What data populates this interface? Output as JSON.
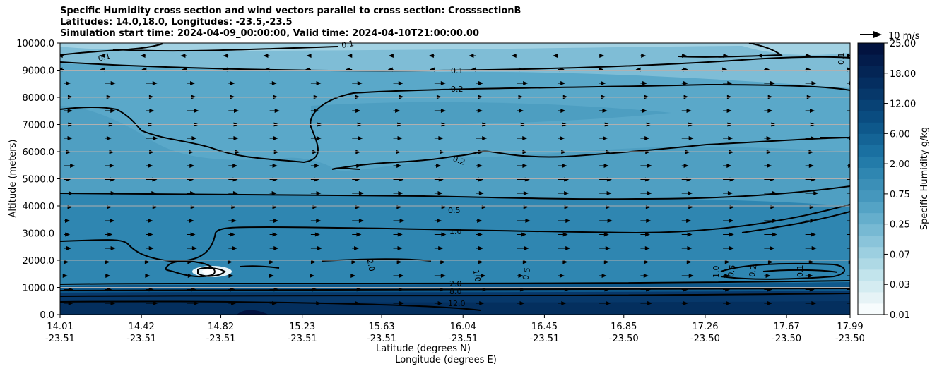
{
  "chart_data": {
    "type": "contourf",
    "title_lines": [
      "Specific Humidity cross section and wind vectors parallel to cross section: CrosssectionB",
      "Latitudes: 14.0,18.0, Longitudes: -23.5,-23.5",
      "Simulation start time: 2024-04-09_00:00:00, Valid time: 2024-04-10T21:00:00.00"
    ],
    "ylabel": "Altitude (meters)",
    "xlabel_lat": "Latitude (degrees N)",
    "xlabel_lon": "Longitude (degrees E)",
    "ylim": [
      0,
      10000
    ],
    "y_ticks": [
      {
        "value": 0,
        "label": "0.0"
      },
      {
        "value": 1000,
        "label": "1000.0"
      },
      {
        "value": 2000,
        "label": "2000.0"
      },
      {
        "value": 3000,
        "label": "3000.0"
      },
      {
        "value": 4000,
        "label": "4000.0"
      },
      {
        "value": 5000,
        "label": "5000.0"
      },
      {
        "value": 6000,
        "label": "6000.0"
      },
      {
        "value": 7000,
        "label": "7000.0"
      },
      {
        "value": 8000,
        "label": "8000.0"
      },
      {
        "value": 9000,
        "label": "9000.0"
      },
      {
        "value": 10000,
        "label": "10000.0"
      }
    ],
    "x_range": [
      14.01,
      17.99
    ],
    "x_ticks": [
      {
        "lat": "14.01",
        "lon": "-23.51",
        "value": 14.01
      },
      {
        "lat": "14.42",
        "lon": "-23.51",
        "value": 14.42
      },
      {
        "lat": "14.82",
        "lon": "-23.51",
        "value": 14.82
      },
      {
        "lat": "15.23",
        "lon": "-23.51",
        "value": 15.23
      },
      {
        "lat": "15.63",
        "lon": "-23.51",
        "value": 15.63
      },
      {
        "lat": "16.04",
        "lon": "-23.51",
        "value": 16.04
      },
      {
        "lat": "16.45",
        "lon": "-23.51",
        "value": 16.45
      },
      {
        "lat": "16.85",
        "lon": "-23.50",
        "value": 16.85
      },
      {
        "lat": "17.26",
        "lon": "-23.50",
        "value": 17.26
      },
      {
        "lat": "17.67",
        "lon": "-23.50",
        "value": 17.67
      },
      {
        "lat": "17.99",
        "lon": "-23.50",
        "value": 17.99
      }
    ],
    "colorbar": {
      "label": "Specific Humidity g/kg",
      "levels": [
        0.01,
        0.02,
        0.03,
        0.05,
        0.07,
        0.1,
        0.15,
        0.2,
        0.25,
        0.3,
        0.5,
        0.75,
        1.0,
        1.5,
        2.0,
        3.0,
        4.0,
        6.0,
        8.0,
        10.0,
        12.0,
        15.0,
        18.0,
        20.0,
        25.0
      ],
      "tick_labels": [
        "0.01",
        "0.03",
        "0.07",
        "0.25",
        "0.75",
        "2.00",
        "6.00",
        "12.00",
        "18.00",
        "25.00"
      ],
      "colors": [
        "#f7fcfd",
        "#e6f3f6",
        "#d4ecf1",
        "#c2e4ec",
        "#aed9e5",
        "#9ccfe0",
        "#8ac4da",
        "#77b9d3",
        "#65aecc",
        "#54a3c5",
        "#4597bd",
        "#3b8fb7",
        "#2f86b1",
        "#237ba9",
        "#1a70a1",
        "#146496",
        "#0e588b",
        "#0a4c80",
        "#084275",
        "#07386a",
        "#052e60",
        "#042555",
        "#031c4b",
        "#021340"
      ]
    },
    "contour_labels": [
      "0.1",
      "0.1",
      "0.1",
      "0.1",
      "0.2",
      "0.2",
      "0.5",
      "1.0",
      "2.0",
      "2.0",
      "8.0",
      "12.0",
      "1.0",
      "0.5",
      "1.0",
      "0.5",
      "0.2",
      "0.1"
    ],
    "vector_key_label": "10 m/s",
    "wind_vector_count": 240,
    "wind_direction": "parallel to cross section, mostly northward (rightward)"
  }
}
